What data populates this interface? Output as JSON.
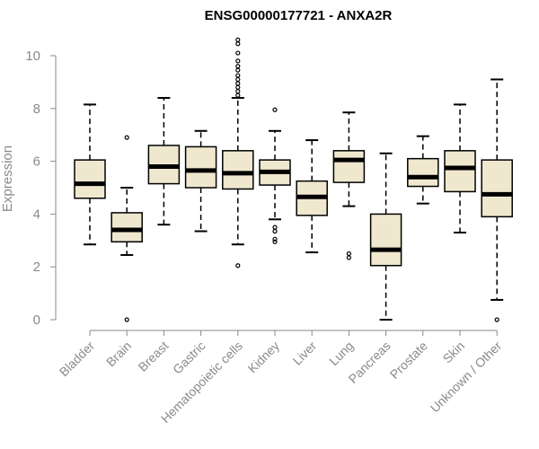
{
  "chart_data": {
    "type": "boxplot",
    "title": "ENSG00000177721 - ANXA2R",
    "xlabel": "",
    "ylabel": "Expression",
    "ylim": [
      0,
      10
    ],
    "yticks": [
      0,
      2,
      4,
      6,
      8,
      10
    ],
    "box_color": "#efe8cf",
    "categories": [
      "Bladder",
      "Brain",
      "Breast",
      "Gastric",
      "Hematopoietic cells",
      "Kidney",
      "Liver",
      "Lung",
      "Pancreas",
      "Prostate",
      "Skin",
      "Unknown / Other"
    ],
    "boxes": [
      {
        "category": "Bladder",
        "whisker_low": 2.85,
        "q1": 4.6,
        "median": 5.15,
        "q3": 6.05,
        "whisker_high": 8.15,
        "outliers": []
      },
      {
        "category": "Brain",
        "whisker_low": 2.45,
        "q1": 2.95,
        "median": 3.4,
        "q3": 4.05,
        "whisker_high": 5.0,
        "outliers": [
          6.9,
          0.0
        ]
      },
      {
        "category": "Breast",
        "whisker_low": 3.6,
        "q1": 5.15,
        "median": 5.8,
        "q3": 6.6,
        "whisker_high": 8.4,
        "outliers": []
      },
      {
        "category": "Gastric",
        "whisker_low": 3.35,
        "q1": 5.0,
        "median": 5.65,
        "q3": 6.55,
        "whisker_high": 7.15,
        "outliers": []
      },
      {
        "category": "Hematopoietic cells",
        "whisker_low": 2.85,
        "q1": 4.95,
        "median": 5.55,
        "q3": 6.4,
        "whisker_high": 8.4,
        "outliers": [
          2.05,
          8.5,
          8.65,
          8.8,
          8.95,
          9.1,
          9.25,
          9.45,
          9.6,
          9.8,
          10.1,
          10.45,
          10.6
        ]
      },
      {
        "category": "Kidney",
        "whisker_low": 3.8,
        "q1": 5.1,
        "median": 5.6,
        "q3": 6.05,
        "whisker_high": 7.15,
        "outliers": [
          7.95,
          3.5,
          3.35,
          3.05,
          2.95
        ]
      },
      {
        "category": "Liver",
        "whisker_low": 2.55,
        "q1": 3.95,
        "median": 4.65,
        "q3": 5.25,
        "whisker_high": 6.8,
        "outliers": []
      },
      {
        "category": "Lung",
        "whisker_low": 4.3,
        "q1": 5.2,
        "median": 6.05,
        "q3": 6.4,
        "whisker_high": 7.85,
        "outliers": [
          2.5,
          2.35
        ]
      },
      {
        "category": "Pancreas",
        "whisker_low": 0.0,
        "q1": 2.05,
        "median": 2.65,
        "q3": 4.0,
        "whisker_high": 6.3,
        "outliers": []
      },
      {
        "category": "Prostate",
        "whisker_low": 4.4,
        "q1": 5.05,
        "median": 5.4,
        "q3": 6.1,
        "whisker_high": 6.95,
        "outliers": []
      },
      {
        "category": "Skin",
        "whisker_low": 3.3,
        "q1": 4.85,
        "median": 5.75,
        "q3": 6.4,
        "whisker_high": 8.15,
        "outliers": []
      },
      {
        "category": "Unknown / Other",
        "whisker_low": 0.75,
        "q1": 3.9,
        "median": 4.75,
        "q3": 6.05,
        "whisker_high": 9.1,
        "outliers": [
          0.0
        ]
      }
    ]
  }
}
